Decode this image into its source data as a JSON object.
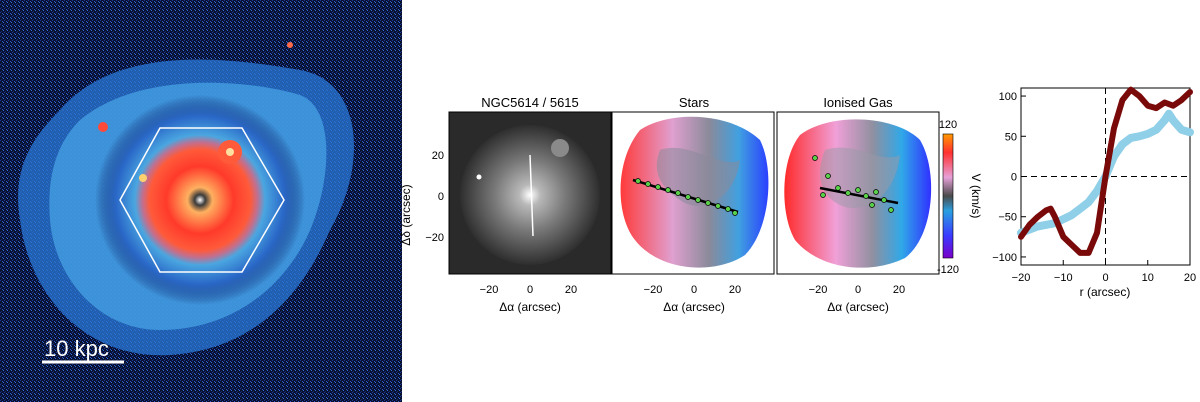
{
  "image_panel": {
    "scale_bar_label": "10 kpc"
  },
  "maps": {
    "titles": [
      "NGC5614 / 5615",
      "Stars",
      "Ionised Gas"
    ],
    "x_ticks": [
      "−20",
      "0",
      "20"
    ],
    "y_ticks": [
      "20",
      "0",
      "−20"
    ],
    "xlabel": "Δα  (arcsec)",
    "ylabel": "Δδ  (arcsec)",
    "colorbar": {
      "label": "V  (km/s)",
      "max_label": "120",
      "min_label": "-120"
    }
  },
  "colors": {
    "dark_red_curve": "#7a0a0a",
    "light_blue_curve": "#8fcfe8",
    "colorbar_stops": [
      "#7a00c8",
      "#3a3aff",
      "#2aa0e0",
      "#4a4a4a",
      "#e6a0d8",
      "#ff3030",
      "#ff9a00"
    ]
  },
  "chart_data": {
    "type": "line",
    "title": "",
    "xlabel": "r  (arcsec)",
    "ylabel": "",
    "xlim": [
      -20,
      20
    ],
    "ylim": [
      -110,
      110
    ],
    "x_ticks": [
      "−20",
      "−10",
      "0",
      "10",
      "20"
    ],
    "y_ticks": [
      "100",
      "50",
      "0",
      "−50",
      "−100"
    ],
    "series": [
      {
        "color": "#7a0a0a",
        "x": [
          -20,
          -18,
          -16,
          -14,
          -13,
          -12,
          -10,
          -8,
          -6,
          -4,
          -2,
          0,
          2,
          4,
          6,
          8,
          10,
          12,
          14,
          16,
          18,
          20
        ],
        "y": [
          -75,
          -60,
          -50,
          -42,
          -40,
          -50,
          -75,
          -85,
          -95,
          -95,
          -70,
          0,
          60,
          95,
          108,
          100,
          88,
          85,
          92,
          88,
          95,
          105
        ]
      },
      {
        "color": "#8fcfe8",
        "x": [
          -20,
          -16,
          -12,
          -8,
          -6,
          -4,
          -2,
          0,
          2,
          4,
          6,
          8,
          10,
          12,
          14,
          15,
          16,
          18,
          20
        ],
        "y": [
          -70,
          -62,
          -58,
          -48,
          -40,
          -32,
          -18,
          0,
          25,
          40,
          48,
          50,
          53,
          58,
          70,
          78,
          70,
          58,
          55
        ]
      }
    ]
  }
}
